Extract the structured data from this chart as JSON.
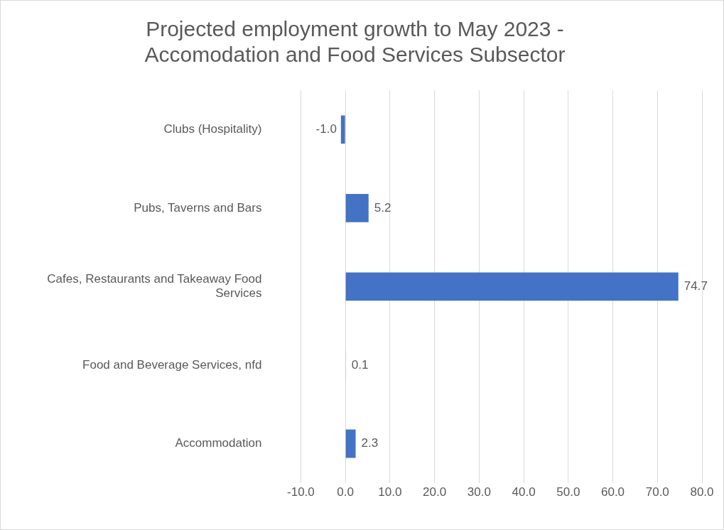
{
  "chart_data": {
    "type": "bar",
    "orientation": "horizontal",
    "title": "Projected employment growth to May 2023 - Accomodation and Food Services Subsector",
    "categories": [
      "Clubs (Hospitality)",
      "Pubs, Taverns and Bars",
      "Cafes, Restaurants and Takeaway Food Services",
      "Food and Beverage Services, nfd",
      "Accommodation"
    ],
    "values": [
      -1.0,
      5.2,
      74.7,
      0.1,
      2.3
    ],
    "value_labels": [
      "-1.0",
      "5.2",
      "74.7",
      "0.1",
      "2.3"
    ],
    "color": "#4472c4",
    "xlim": [
      -10,
      80
    ],
    "xticks": [
      {
        "value": -10,
        "label": "-10.0"
      },
      {
        "value": 0,
        "label": "0.0"
      },
      {
        "value": 10,
        "label": "10.0"
      },
      {
        "value": 20,
        "label": "20.0"
      },
      {
        "value": 30,
        "label": "30.0"
      },
      {
        "value": 40,
        "label": "40.0"
      },
      {
        "value": 50,
        "label": "50.0"
      },
      {
        "value": 60,
        "label": "60.0"
      },
      {
        "value": 70,
        "label": "70.0"
      },
      {
        "value": 80,
        "label": "80.0"
      }
    ],
    "grid": "x",
    "legend": false
  }
}
